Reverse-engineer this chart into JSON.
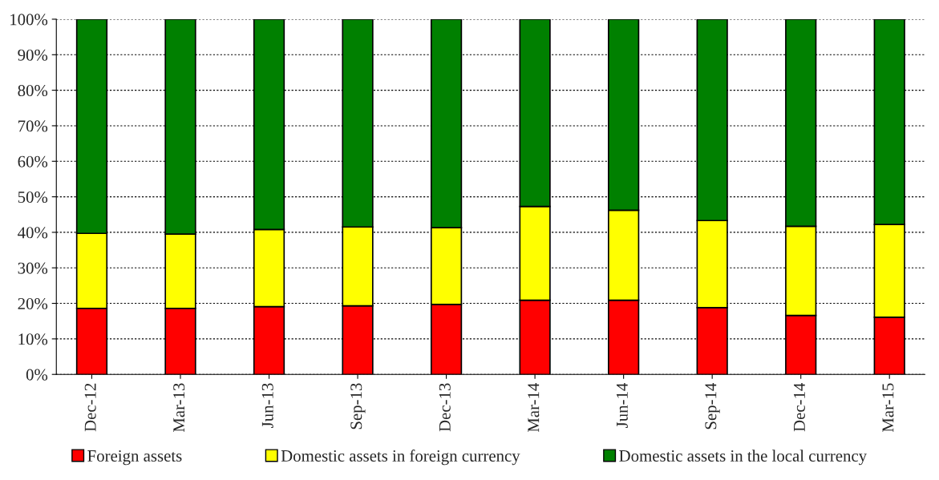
{
  "chart_data": {
    "type": "bar",
    "stacked": true,
    "categories": [
      "Dec-12",
      "Mar-13",
      "Jun-13",
      "Sep-13",
      "Dec-13",
      "Mar-14",
      "Jun-14",
      "Sep-14",
      "Dec-14",
      "Mar-15"
    ],
    "series": [
      {
        "name": "Foreign assets",
        "color": "#ff0000",
        "values": [
          18.6,
          18.6,
          19.1,
          19.3,
          19.7,
          20.9,
          20.9,
          18.8,
          16.6,
          16.1
        ]
      },
      {
        "name": "Domestic assets in foreign currency",
        "color": "#ffff00",
        "values": [
          21.1,
          20.9,
          21.7,
          22.2,
          21.6,
          26.4,
          25.3,
          24.5,
          25.1,
          26.1
        ]
      },
      {
        "name": "Domestic assets in the local currency",
        "color": "#008000",
        "values": [
          60.3,
          60.5,
          59.2,
          58.5,
          58.7,
          52.7,
          53.8,
          56.7,
          58.3,
          57.8
        ]
      }
    ],
    "ylim": [
      0,
      100
    ],
    "yticks": [
      {
        "value": 0,
        "label": "0%"
      },
      {
        "value": 10,
        "label": "10%"
      },
      {
        "value": 20,
        "label": "20%"
      },
      {
        "value": 30,
        "label": "30%"
      },
      {
        "value": 40,
        "label": "40%"
      },
      {
        "value": 50,
        "label": "50%"
      },
      {
        "value": 60,
        "label": "60%"
      },
      {
        "value": 70,
        "label": "70%"
      },
      {
        "value": 80,
        "label": "80%"
      },
      {
        "value": 90,
        "label": "90%"
      },
      {
        "value": 100,
        "label": "100%"
      }
    ],
    "grid": "y",
    "legend": "bottom"
  }
}
